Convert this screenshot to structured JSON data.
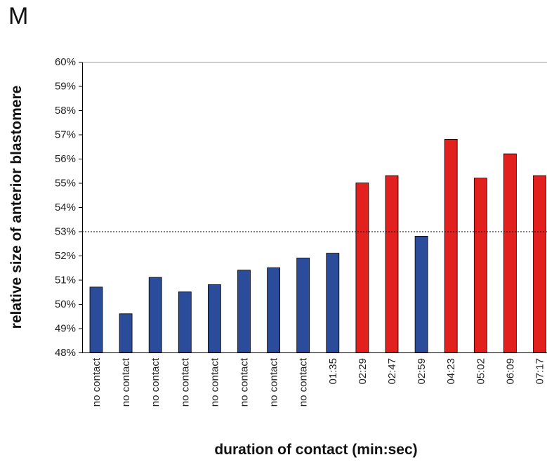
{
  "panel_label": "M",
  "chart_data": {
    "type": "bar",
    "title": "",
    "xlabel": "duration of contact (min:sec)",
    "ylabel": "relative size of anterior blastomere",
    "ylim": [
      48,
      60
    ],
    "yticks": [
      "48%",
      "49%",
      "50%",
      "51%",
      "52%",
      "53%",
      "54%",
      "55%",
      "56%",
      "57%",
      "58%",
      "59%",
      "60%"
    ],
    "y_unit": "%",
    "reference_line": 53,
    "categories": [
      "no contact",
      "no contact",
      "no contact",
      "no contact",
      "no contact",
      "no contact",
      "no contact",
      "no contact",
      "01:35",
      "02:29",
      "02:47",
      "02:59",
      "04:23",
      "05:02",
      "06:09",
      "07:17"
    ],
    "values": [
      50.7,
      49.6,
      51.1,
      50.5,
      50.8,
      51.4,
      51.5,
      51.9,
      52.1,
      55.0,
      55.3,
      52.8,
      56.8,
      55.2,
      56.2,
      55.3
    ],
    "bar_colors": [
      "#2b4b9b",
      "#2b4b9b",
      "#2b4b9b",
      "#2b4b9b",
      "#2b4b9b",
      "#2b4b9b",
      "#2b4b9b",
      "#2b4b9b",
      "#2b4b9b",
      "#e2201e",
      "#e2201e",
      "#2b4b9b",
      "#e2201e",
      "#e2201e",
      "#e2201e",
      "#e2201e"
    ],
    "grid": false,
    "legend": "none"
  }
}
